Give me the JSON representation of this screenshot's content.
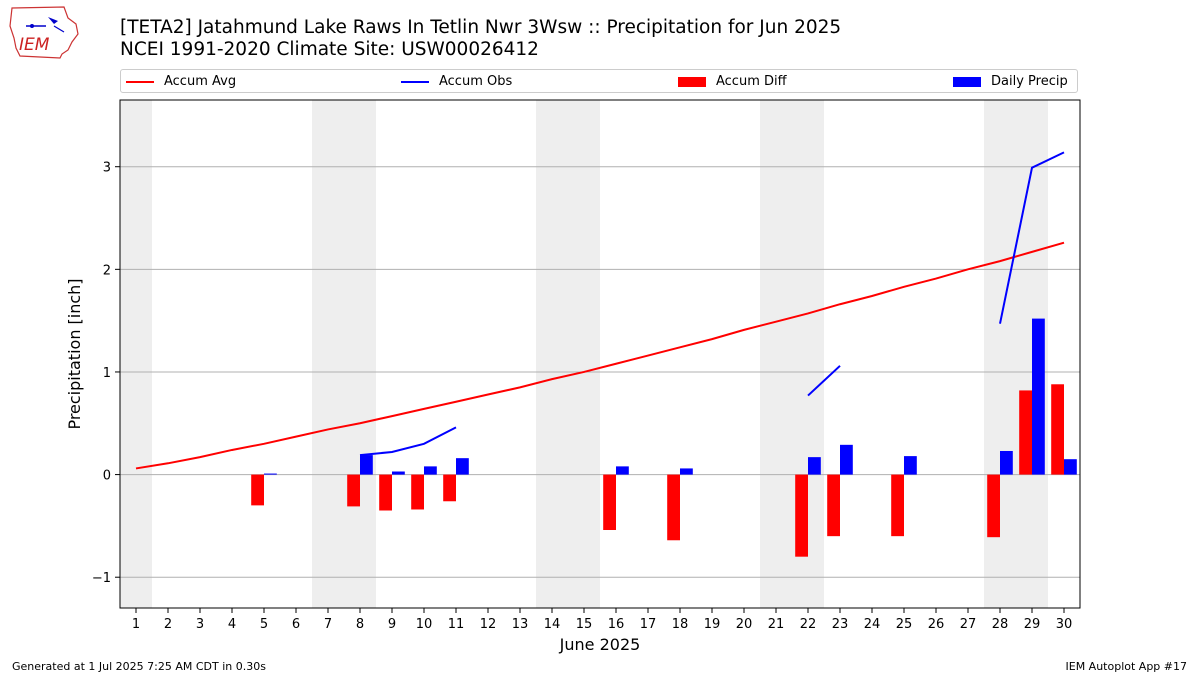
{
  "header": {
    "title_line1": "[TETA2] Jatahmund Lake Raws In Tetlin Nwr 3Wsw :: Precipitation for Jun 2025",
    "title_line2": "NCEI 1991-2020 Climate Site: USW00026412",
    "logo_text": "IEM"
  },
  "legend": {
    "placement": "top, above plot",
    "items": [
      {
        "label": "Accum Avg",
        "kind": "line",
        "color": "#ff0000"
      },
      {
        "label": "Accum Obs",
        "kind": "line",
        "color": "#0000ff"
      },
      {
        "label": "Accum Diff",
        "kind": "patch",
        "color": "#ff0000"
      },
      {
        "label": "Daily Precip",
        "kind": "patch",
        "color": "#0000ff"
      }
    ]
  },
  "footer": {
    "left": "Generated at 1 Jul 2025 7:25 AM CDT in 0.30s",
    "right": "IEM Autoplot App #17"
  },
  "chart_data": {
    "type": "bar",
    "xlabel": "June 2025",
    "ylabel": "Precipitation [inch]",
    "xlim": [
      0.5,
      30.5
    ],
    "ylim": [
      -1.3,
      3.65
    ],
    "yticks": [
      -1,
      0,
      1,
      2,
      3
    ],
    "ytick_labels": [
      "−1",
      "0",
      "1",
      "2",
      "3"
    ],
    "xticks": [
      1,
      2,
      3,
      4,
      5,
      6,
      7,
      8,
      9,
      10,
      11,
      12,
      13,
      14,
      15,
      16,
      17,
      18,
      19,
      20,
      21,
      22,
      23,
      24,
      25,
      26,
      27,
      28,
      29,
      30
    ],
    "grid": "horizontal",
    "weekend_shading": [
      [
        0.5,
        1.5
      ],
      [
        6.5,
        8.5
      ],
      [
        13.5,
        15.5
      ],
      [
        20.5,
        22.5
      ],
      [
        27.5,
        29.5
      ]
    ],
    "colors": {
      "avg": "#ff0000",
      "obs": "#0000ff",
      "diff": "#ff0000",
      "daily": "#0000ff",
      "weekend": "#eeeeee"
    },
    "series": [
      {
        "name": "Accum Avg",
        "kind": "line",
        "x": [
          1,
          2,
          3,
          4,
          5,
          6,
          7,
          8,
          9,
          10,
          11,
          12,
          13,
          14,
          15,
          16,
          17,
          18,
          19,
          20,
          21,
          22,
          23,
          24,
          25,
          26,
          27,
          28,
          29,
          30
        ],
        "values": [
          0.06,
          0.11,
          0.17,
          0.24,
          0.3,
          0.37,
          0.44,
          0.5,
          0.57,
          0.64,
          0.71,
          0.78,
          0.85,
          0.93,
          1.0,
          1.08,
          1.16,
          1.24,
          1.32,
          1.41,
          1.49,
          1.57,
          1.66,
          1.74,
          1.83,
          1.91,
          2.0,
          2.08,
          2.17,
          2.26
        ]
      },
      {
        "name": "Accum Obs",
        "kind": "line",
        "segments": [
          {
            "x": [
              8,
              9,
              10,
              11
            ],
            "values": [
              0.19,
              0.22,
              0.3,
              0.46
            ]
          },
          {
            "x": [
              22,
              23
            ],
            "values": [
              0.77,
              1.06
            ]
          },
          {
            "x": [
              28,
              29,
              30
            ],
            "values": [
              1.47,
              2.99,
              3.14
            ]
          }
        ]
      },
      {
        "name": "Accum Diff",
        "kind": "bar",
        "offset": "left",
        "x": [
          5,
          8,
          9,
          10,
          11,
          16,
          18,
          22,
          23,
          25,
          28,
          29,
          30
        ],
        "values": [
          -0.3,
          -0.31,
          -0.35,
          -0.34,
          -0.26,
          -0.54,
          -0.64,
          -0.8,
          -0.6,
          -0.6,
          -0.61,
          0.82,
          0.88
        ]
      },
      {
        "name": "Daily Precip",
        "kind": "bar",
        "offset": "right",
        "x": [
          5,
          8,
          9,
          10,
          11,
          16,
          18,
          22,
          23,
          25,
          28,
          29,
          30
        ],
        "values": [
          0.01,
          0.19,
          0.03,
          0.08,
          0.16,
          0.08,
          0.06,
          0.17,
          0.29,
          0.18,
          0.23,
          1.52,
          0.15
        ]
      }
    ]
  }
}
